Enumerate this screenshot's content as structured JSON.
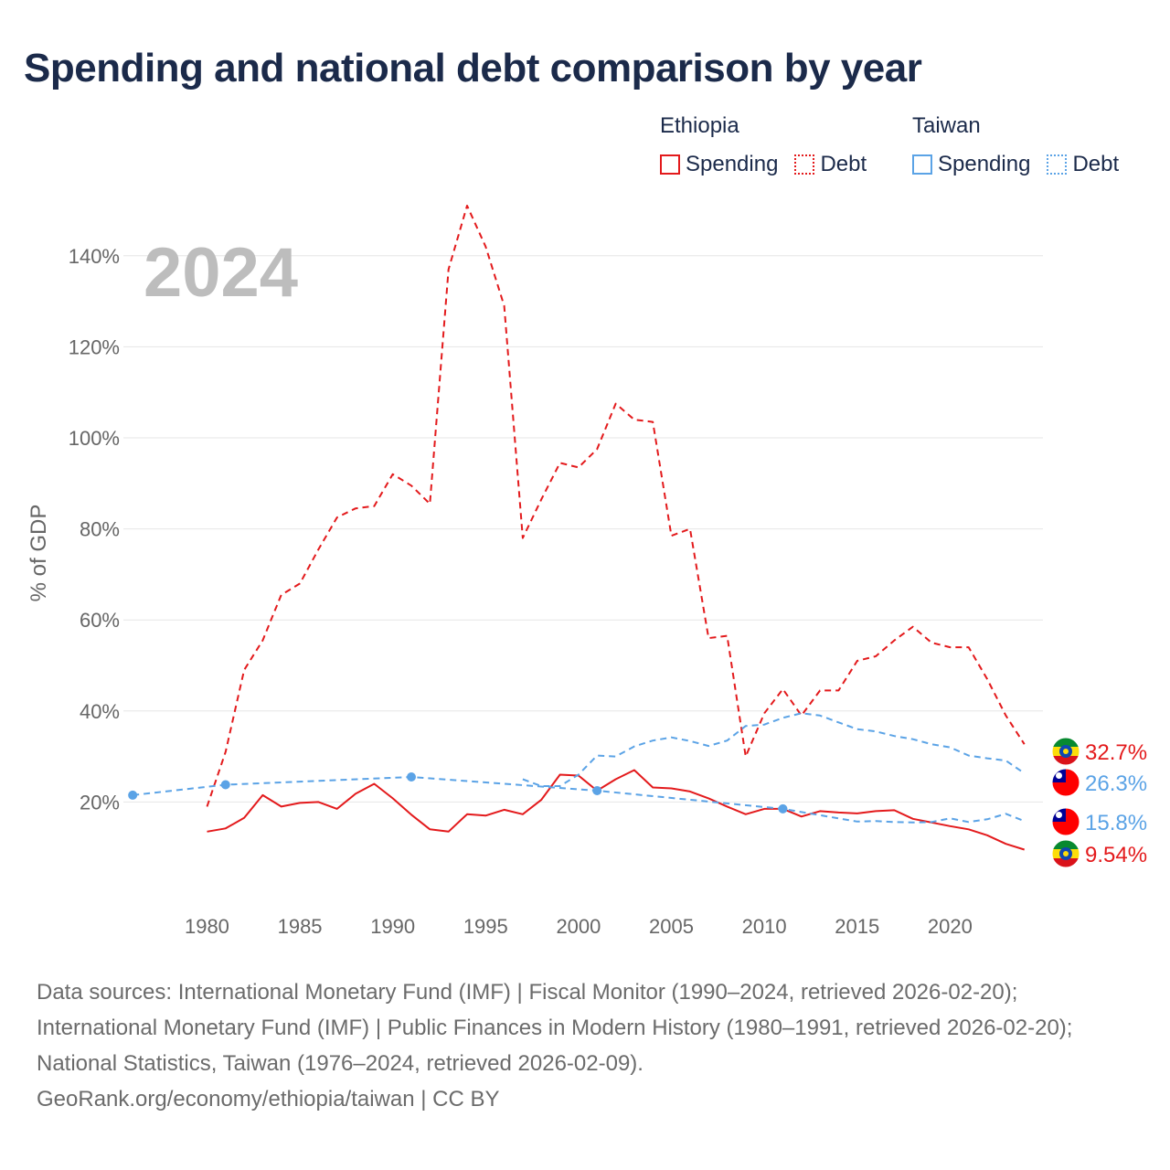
{
  "title": "Spending and national debt comparison by year",
  "legend": [
    {
      "group": "Ethiopia",
      "color": "#e31a1c",
      "items": [
        {
          "label": "Spending",
          "style": "solid"
        },
        {
          "label": "Debt",
          "style": "dotted"
        }
      ]
    },
    {
      "group": "Taiwan",
      "color": "#5ba3e6",
      "items": [
        {
          "label": "Spending",
          "style": "solid"
        },
        {
          "label": "Debt",
          "style": "dotted"
        }
      ]
    }
  ],
  "chart_data": {
    "type": "line",
    "year_label": "2024",
    "ylabel": "% of GDP",
    "xlim": [
      1975.5,
      2025
    ],
    "ylim": [
      0,
      150
    ],
    "yticks": [
      20,
      40,
      60,
      80,
      100,
      120,
      140
    ],
    "ytick_labels": [
      "20%",
      "40%",
      "60%",
      "80%",
      "100%",
      "120%",
      "140%"
    ],
    "xticks": [
      1980,
      1985,
      1990,
      1995,
      2000,
      2005,
      2010,
      2015,
      2020
    ],
    "xtick_labels": [
      "1980",
      "1985",
      "1990",
      "1995",
      "2000",
      "2005",
      "2010",
      "2015",
      "2020"
    ],
    "series": [
      {
        "name": "Ethiopia Debt",
        "country": "Ethiopia",
        "kind": "Debt",
        "color": "#e31a1c",
        "dashed": true,
        "x": [
          1980,
          1981,
          1982,
          1983,
          1984,
          1985,
          1986,
          1987,
          1988,
          1989,
          1990,
          1991,
          1992,
          1993,
          1994,
          1995,
          1996,
          1997,
          1998,
          1999,
          2000,
          2001,
          2002,
          2003,
          2004,
          2005,
          2006,
          2007,
          2008,
          2009,
          2010,
          2011,
          2012,
          2013,
          2014,
          2015,
          2016,
          2017,
          2018,
          2019,
          2020,
          2021,
          2022,
          2023,
          2024
        ],
        "y": [
          19,
          31,
          49,
          55.5,
          65.5,
          68,
          75.5,
          82.5,
          84.5,
          85,
          92,
          89.5,
          85.5,
          137,
          151,
          142,
          129,
          78,
          86.5,
          94.5,
          93.5,
          97.5,
          107.5,
          104,
          103.5,
          78.5,
          80,
          56,
          56.5,
          30,
          39.5,
          44.8,
          39,
          44.5,
          44.5,
          51,
          52,
          55.5,
          58.5,
          55,
          54,
          54,
          47,
          39,
          32.7
        ]
      },
      {
        "name": "Ethiopia Spending",
        "country": "Ethiopia",
        "kind": "Spending",
        "color": "#e31a1c",
        "dashed": false,
        "x": [
          1980,
          1981,
          1982,
          1983,
          1984,
          1985,
          1986,
          1987,
          1988,
          1989,
          1990,
          1991,
          1992,
          1993,
          1994,
          1995,
          1996,
          1997,
          1998,
          1999,
          2000,
          2001,
          2002,
          2003,
          2004,
          2005,
          2006,
          2007,
          2008,
          2009,
          2010,
          2011,
          2012,
          2013,
          2014,
          2015,
          2016,
          2017,
          2018,
          2019,
          2020,
          2021,
          2022,
          2023,
          2024
        ],
        "y": [
          13.5,
          14.2,
          16.5,
          21.5,
          19,
          19.8,
          20,
          18.5,
          21.8,
          24,
          20.8,
          17.2,
          14,
          13.5,
          17.3,
          17,
          18.3,
          17.3,
          20.5,
          26,
          25.8,
          22.5,
          25,
          27,
          23.2,
          23,
          22.3,
          20.8,
          19,
          17.3,
          18.5,
          18.5,
          16.8,
          18,
          17.7,
          17.5,
          18,
          18.2,
          16.3,
          15.5,
          14.7,
          14,
          12.7,
          10.8,
          9.54
        ]
      },
      {
        "name": "Taiwan Debt",
        "country": "Taiwan",
        "kind": "Debt",
        "color": "#5ba3e6",
        "dashed": true,
        "x": [
          1976,
          1981,
          1991,
          2001,
          2011,
          2015,
          2016,
          2017,
          2018,
          2019,
          2020,
          2021,
          2022,
          2023,
          2024
        ],
        "y": [
          21.5,
          23.8,
          25.5,
          22.5,
          18.5,
          15.7,
          15.8,
          15.6,
          15.5,
          15.6,
          16.4,
          15.6,
          16.2,
          17.4,
          15.8
        ],
        "markers": [
          1976,
          1981,
          1991,
          2001,
          2011
        ]
      },
      {
        "name": "Taiwan Spending",
        "country": "Taiwan",
        "kind": "Spending",
        "color": "#5ba3e6",
        "dashed": true,
        "x": [
          1997,
          1998,
          1999,
          2000,
          2001,
          2002,
          2003,
          2004,
          2005,
          2006,
          2007,
          2008,
          2009,
          2010,
          2011,
          2012,
          2013,
          2014,
          2015,
          2016,
          2017,
          2018,
          2019,
          2020,
          2021,
          2022,
          2023,
          2024
        ],
        "y": [
          25,
          23.5,
          23.5,
          26,
          30.2,
          30,
          32.2,
          33.5,
          34.2,
          33.4,
          32.3,
          33.5,
          36.7,
          37,
          38.5,
          39.5,
          39,
          37.5,
          36,
          35.5,
          34.5,
          33.8,
          32.7,
          32,
          30.2,
          29.6,
          29.1,
          26.3
        ]
      }
    ],
    "end_labels": [
      {
        "text": "32.7%",
        "color": "#e31a1c",
        "country": "Ethiopia",
        "value": 32.7
      },
      {
        "text": "26.3%",
        "color": "#5ba3e6",
        "country": "Taiwan",
        "value": 26.3
      },
      {
        "text": "15.8%",
        "color": "#5ba3e6",
        "country": "Taiwan",
        "value": 15.8
      },
      {
        "text": "9.54%",
        "color": "#e31a1c",
        "country": "Ethiopia",
        "value": 9.54
      }
    ]
  },
  "footer": {
    "sources": "Data sources: International Monetary Fund (IMF) | Fiscal Monitor (1990–2024, retrieved 2026-02-20); International Monetary Fund (IMF) | Public Finances in Modern History (1980–1991, retrieved 2026-02-20); National Statistics, Taiwan (1976–2024, retrieved 2026-02-09).",
    "credit": "GeoRank.org/economy/ethiopia/taiwan | CC BY"
  }
}
